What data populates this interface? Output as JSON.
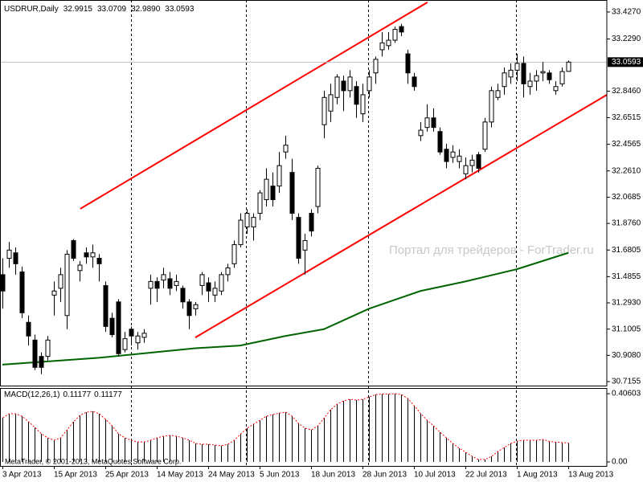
{
  "chart_data": [
    {
      "type": "candlestick",
      "symbol": "USDRUR,Daily",
      "header_values": [
        "32.9915",
        "33.0709",
        "32.9890",
        "33.0593"
      ],
      "categories": [
        "3 Apr 2013",
        null,
        null,
        null,
        null,
        null,
        null,
        null,
        "15 Apr 2013",
        null,
        null,
        null,
        null,
        null,
        null,
        null,
        "25 Apr 2013",
        null,
        null,
        null,
        null,
        null,
        null,
        null,
        "14 May 2013",
        null,
        null,
        null,
        null,
        null,
        null,
        null,
        "24 May 2013",
        null,
        null,
        null,
        null,
        null,
        null,
        null,
        "5 Jun 2013",
        null,
        null,
        null,
        null,
        null,
        null,
        null,
        "18 Jun 2013",
        null,
        null,
        null,
        null,
        null,
        null,
        null,
        "28 Jun 2013",
        null,
        null,
        null,
        null,
        null,
        null,
        null,
        "10 Jul 2013",
        null,
        null,
        null,
        null,
        null,
        null,
        null,
        "22 Jul 2013",
        null,
        null,
        null,
        null,
        null,
        null,
        null,
        "1 Aug 2013",
        null,
        null,
        null,
        null,
        null,
        null,
        null,
        "13 Aug 2013"
      ],
      "open": [
        31.5,
        31.62,
        31.66,
        31.52,
        31.15,
        31.02,
        30.9,
        30.9,
        31.35,
        31.4,
        31.2,
        31.75,
        31.53,
        31.66,
        31.63,
        31.62,
        31.42,
        31.18,
        31.3,
        30.95,
        31.1,
        31.0,
        31.04,
        31.4,
        31.45,
        31.46,
        31.47,
        31.42,
        31.4,
        31.3,
        31.25,
        31.42,
        31.44,
        31.35,
        31.38,
        31.5,
        31.58,
        31.72,
        31.85,
        31.85,
        31.95,
        32.05,
        32.15,
        32.15,
        32.4,
        32.25,
        31.92,
        31.68,
        31.95,
        32.0,
        32.6,
        32.7,
        32.8,
        32.92,
        32.85,
        32.88,
        32.68,
        32.85,
        32.98,
        33.15,
        33.18,
        33.22,
        33.32,
        33.12,
        32.95,
        32.52,
        32.58,
        32.65,
        32.55,
        32.42,
        32.36,
        32.33,
        32.24,
        32.3,
        32.38,
        32.42,
        32.62,
        32.8,
        32.88,
        32.95,
        33.0,
        33.05,
        32.88,
        32.92,
        32.98,
        32.98,
        32.85,
        32.9,
        32.9915
      ],
      "high": [
        31.62,
        31.74,
        31.7,
        31.56,
        31.2,
        31.06,
        30.93,
        31.05,
        31.45,
        31.55,
        31.68,
        31.76,
        31.6,
        31.7,
        31.72,
        31.65,
        31.45,
        31.22,
        31.32,
        31.08,
        31.12,
        31.08,
        31.1,
        31.5,
        31.48,
        31.55,
        31.52,
        31.5,
        31.42,
        31.32,
        31.3,
        31.52,
        31.48,
        31.45,
        31.52,
        31.58,
        31.75,
        31.95,
        31.98,
        31.95,
        32.12,
        32.28,
        32.25,
        32.4,
        32.52,
        32.35,
        31.95,
        31.8,
        31.98,
        32.3,
        32.85,
        32.9,
        32.97,
        32.96,
        33.0,
        32.92,
        32.9,
        33.0,
        33.1,
        33.28,
        33.28,
        33.32,
        33.34,
        33.15,
        32.98,
        32.62,
        32.75,
        32.72,
        32.58,
        32.46,
        32.45,
        32.42,
        32.36,
        32.38,
        32.4,
        32.65,
        32.88,
        32.9,
        33.02,
        33.05,
        33.12,
        33.1,
        32.98,
        33.0,
        33.06,
        33.0,
        32.92,
        33.02,
        33.0709
      ],
      "low": [
        31.25,
        31.55,
        31.5,
        31.18,
        30.98,
        30.8,
        30.77,
        30.87,
        31.2,
        31.3,
        31.1,
        31.6,
        31.45,
        31.58,
        31.55,
        31.45,
        31.08,
        31.04,
        30.9,
        30.93,
        30.98,
        30.95,
        31.0,
        31.28,
        31.3,
        31.4,
        31.35,
        31.38,
        31.25,
        31.1,
        31.2,
        31.35,
        31.3,
        31.3,
        31.35,
        31.45,
        31.55,
        31.7,
        31.8,
        31.75,
        31.9,
        32.0,
        32.0,
        32.1,
        32.35,
        31.9,
        31.58,
        31.5,
        31.78,
        31.95,
        32.5,
        32.62,
        32.75,
        32.7,
        32.8,
        32.65,
        32.62,
        32.8,
        32.9,
        33.1,
        33.15,
        33.2,
        33.25,
        32.9,
        32.85,
        32.48,
        32.55,
        32.55,
        32.38,
        32.28,
        32.32,
        32.28,
        32.2,
        32.25,
        32.25,
        32.4,
        32.58,
        32.78,
        32.82,
        32.9,
        32.92,
        32.8,
        32.82,
        32.85,
        32.92,
        32.9,
        32.82,
        32.88,
        32.989
      ],
      "close": [
        31.38,
        31.68,
        31.58,
        31.22,
        31.05,
        30.82,
        30.82,
        31.02,
        31.38,
        31.5,
        31.65,
        31.62,
        31.57,
        31.63,
        31.66,
        31.58,
        31.12,
        31.06,
        30.92,
        31.03,
        31.05,
        31.05,
        31.07,
        31.45,
        31.4,
        31.5,
        31.4,
        31.45,
        31.3,
        31.2,
        31.28,
        31.5,
        31.38,
        31.4,
        31.5,
        31.55,
        31.72,
        31.9,
        31.95,
        31.92,
        32.1,
        32.2,
        32.05,
        32.3,
        32.45,
        31.95,
        31.62,
        31.75,
        31.82,
        32.28,
        32.8,
        32.82,
        32.95,
        32.85,
        32.95,
        32.75,
        32.82,
        32.95,
        33.08,
        33.2,
        33.22,
        33.3,
        33.28,
        32.98,
        32.88,
        32.56,
        32.65,
        32.58,
        32.4,
        32.33,
        32.4,
        32.37,
        32.3,
        32.34,
        32.28,
        32.62,
        32.85,
        32.85,
        32.98,
        33.0,
        33.05,
        32.9,
        32.92,
        32.96,
        32.99,
        32.93,
        32.88,
        32.99,
        33.0593
      ],
      "ylim": [
        30.686,
        33.515
      ],
      "yticks": [
        {
          "value": 30.7155,
          "label": "30.7155"
        },
        {
          "value": 30.908,
          "label": "30.9080"
        },
        {
          "value": 31.1005,
          "label": "31.1005"
        },
        {
          "value": 31.293,
          "label": "31.2930"
        },
        31.4855,
        31.6805,
        {
          "value": 31.876,
          "label": "31.8760"
        },
        32.0685,
        {
          "value": 32.261,
          "label": "32.2610"
        },
        32.4565,
        32.6515,
        {
          "value": 32.846,
          "label": "32.8460"
        },
        {
          "value": 33.229,
          "label": "33.2290"
        },
        {
          "value": 33.427,
          "label": "33.4270"
        }
      ],
      "up_color": "#ffffff",
      "down_color": "#000000",
      "moving_average": {
        "color": "#006400",
        "x": [
          0,
          15,
          30,
          37,
          44,
          50,
          57,
          65,
          72,
          80,
          88
        ],
        "values": [
          30.84,
          30.89,
          30.96,
          30.98,
          31.05,
          31.1,
          31.25,
          31.38,
          31.45,
          31.54,
          31.66
        ]
      },
      "trendlines": [
        {
          "color": "#ff0000",
          "x": [
            12.1,
            66.1
          ],
          "values": [
            31.983,
            33.498
          ]
        },
        {
          "color": "#ff0000",
          "x": [
            30,
            94.25
          ],
          "values": [
            31.039,
            32.826
          ]
        }
      ],
      "watermark": "Портал для трейдеров - ForTrader.ru",
      "copyright": "MetaTrader, © 2001-2013, MetaQuotes Software Corp."
    },
    {
      "type": "histogram",
      "title": "MACD(12,26,1)",
      "header_values": [
        "0.11177",
        "0.11177"
      ],
      "values": [
        0.263,
        0.287,
        0.287,
        0.272,
        0.239,
        0.205,
        0.167,
        0.143,
        0.129,
        0.143,
        0.191,
        0.239,
        0.277,
        0.296,
        0.301,
        0.287,
        0.253,
        0.215,
        0.167,
        0.143,
        0.129,
        0.119,
        0.119,
        0.129,
        0.143,
        0.153,
        0.158,
        0.153,
        0.143,
        0.129,
        0.11,
        0.105,
        0.105,
        0.1,
        0.096,
        0.105,
        0.129,
        0.167,
        0.201,
        0.225,
        0.248,
        0.272,
        0.282,
        0.291,
        0.296,
        0.272,
        0.229,
        0.201,
        0.191,
        0.215,
        0.263,
        0.311,
        0.344,
        0.363,
        0.373,
        0.368,
        0.373,
        0.387,
        0.401,
        0.404,
        0.404,
        0.406,
        0.401,
        0.377,
        0.334,
        0.287,
        0.248,
        0.215,
        0.177,
        0.143,
        0.11,
        0.081,
        0.057,
        0.033,
        0.014,
        0.014,
        0.033,
        0.062,
        0.086,
        0.11,
        0.124,
        0.129,
        0.129,
        0.129,
        0.134,
        0.122,
        0.118,
        0.115,
        0.112
      ],
      "color": "#000000",
      "signal_color": "#ff0000",
      "ylim": [
        -0.024,
        0.44
      ],
      "yticks": [
        {
          "value": 0,
          "label": "0.00"
        },
        0.40603
      ]
    }
  ]
}
